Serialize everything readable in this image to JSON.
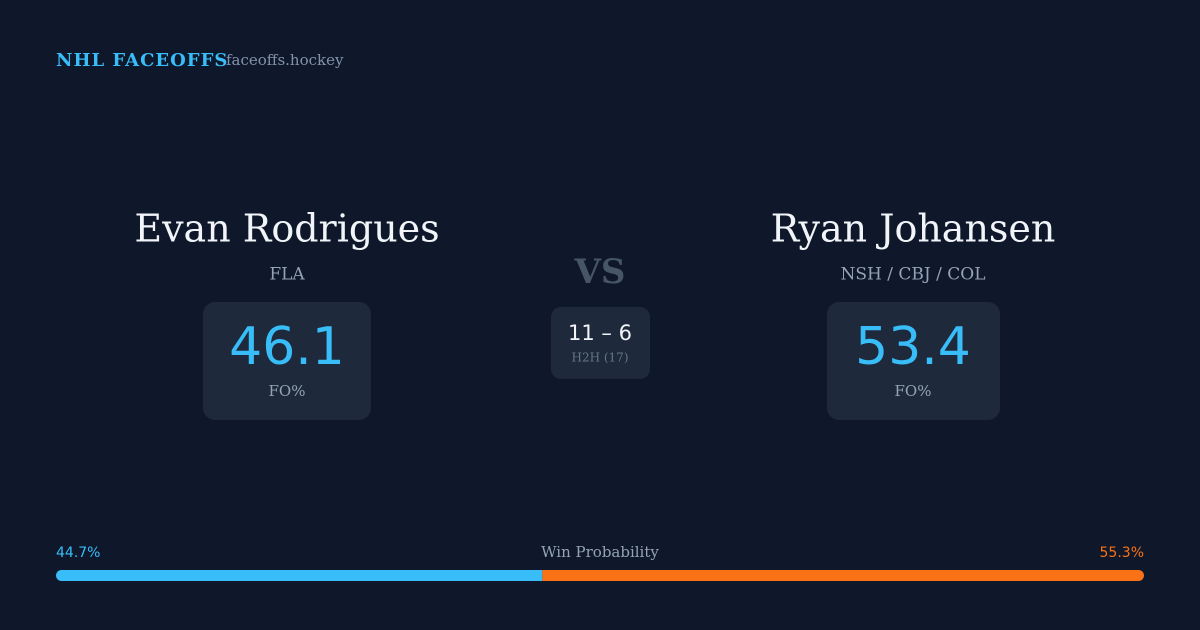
{
  "header": {
    "title": "NHL FACEOFFS",
    "site": "faceoffs.hockey"
  },
  "players": [
    {
      "name": "Evan Rodrigues",
      "team": "FLA",
      "fo_pct": 46.1,
      "fo_label": "FO%"
    },
    {
      "name": "Ryan Johansen",
      "team": "NSH / CBJ / COL",
      "fo_pct": 53.4,
      "fo_label": "FO%"
    }
  ],
  "versus": "VS",
  "head_to_head": {
    "record": "11 – 6",
    "label": "H2H (17)"
  },
  "win_probability": {
    "title": "Win Probability",
    "values": [
      44.7,
      55.3
    ],
    "value_labels": [
      "44.7%",
      "55.3%"
    ],
    "colors": [
      "#38bdf8",
      "#f97316"
    ]
  }
}
